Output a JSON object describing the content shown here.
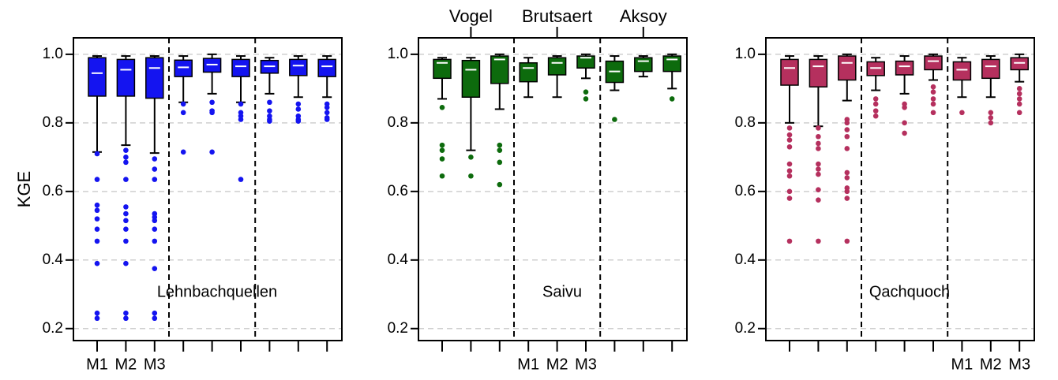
{
  "chart_data": [
    {
      "type": "box",
      "color": "#1414f0",
      "ylabel": "KGE",
      "annotation": "Lehnbachquellen",
      "categories": [
        "M1",
        "M2",
        "M3",
        null,
        null,
        null,
        null,
        null,
        null
      ],
      "ylim": [
        0.165,
        1.048
      ],
      "yticks": [
        0.2,
        0.4,
        0.6,
        0.8,
        {
          "value": 1,
          "label": "1.0"
        }
      ],
      "grid": true,
      "boxes": [
        {
          "whislo": 0.715,
          "q1": 0.878,
          "med": 0.945,
          "q3": 0.99,
          "whishi": 0.995,
          "fliers": [
            0.71,
            0.635,
            0.56,
            0.545,
            0.52,
            0.49,
            0.455,
            0.39,
            0.245,
            0.23
          ]
        },
        {
          "whislo": 0.735,
          "q1": 0.878,
          "med": 0.955,
          "q3": 0.985,
          "whishi": 0.995,
          "fliers": [
            0.72,
            0.7,
            0.685,
            0.635,
            0.555,
            0.535,
            0.515,
            0.49,
            0.455,
            0.39,
            0.245,
            0.23
          ]
        },
        {
          "whislo": 0.712,
          "q1": 0.872,
          "med": 0.96,
          "q3": 0.99,
          "whishi": 0.995,
          "fliers": [
            0.695,
            0.665,
            0.635,
            0.535,
            0.525,
            0.515,
            0.49,
            0.455,
            0.375,
            0.245,
            0.23
          ]
        },
        {
          "whislo": 0.86,
          "q1": 0.935,
          "med": 0.962,
          "q3": 0.983,
          "whishi": 0.995,
          "fliers": [
            0.855,
            0.83,
            0.715
          ]
        },
        {
          "whislo": 0.885,
          "q1": 0.948,
          "med": 0.97,
          "q3": 0.988,
          "whishi": 1.0,
          "fliers": [
            0.86,
            0.835,
            0.83,
            0.715
          ]
        },
        {
          "whislo": 0.86,
          "q1": 0.935,
          "med": 0.965,
          "q3": 0.985,
          "whishi": 0.995,
          "fliers": [
            0.855,
            0.83,
            0.82,
            0.81,
            0.635
          ]
        },
        {
          "whislo": 0.885,
          "q1": 0.945,
          "med": 0.965,
          "q3": 0.982,
          "whishi": 0.99,
          "fliers": [
            0.86,
            0.835,
            0.82,
            0.81,
            0.805
          ]
        },
        {
          "whislo": 0.875,
          "q1": 0.938,
          "med": 0.967,
          "q3": 0.985,
          "whishi": 0.995,
          "fliers": [
            0.855,
            0.84,
            0.82,
            0.81,
            0.805
          ]
        },
        {
          "whislo": 0.875,
          "q1": 0.935,
          "med": 0.965,
          "q3": 0.985,
          "whishi": 0.995,
          "fliers": [
            0.855,
            0.845,
            0.83,
            0.815,
            0.81
          ]
        }
      ]
    },
    {
      "type": "box",
      "color": "#0d6b0d",
      "annotation": "Saivu",
      "group_labels": [
        "Vogel",
        "Brutsaert",
        "Aksoy"
      ],
      "categories": [
        null,
        null,
        null,
        "M1",
        "M2",
        "M3",
        null,
        null,
        null
      ],
      "ylim": [
        0.165,
        1.048
      ],
      "yticks": [
        0.2,
        0.4,
        0.6,
        0.8,
        {
          "value": 1,
          "label": "1.0"
        }
      ],
      "grid": true,
      "boxes": [
        {
          "whislo": 0.87,
          "q1": 0.93,
          "med": 0.975,
          "q3": 0.985,
          "whishi": 0.99,
          "fliers": [
            0.845,
            0.735,
            0.72,
            0.695,
            0.645
          ]
        },
        {
          "whislo": 0.72,
          "q1": 0.875,
          "med": 0.955,
          "q3": 0.982,
          "whishi": 0.99,
          "fliers": [
            0.7,
            0.645
          ]
        },
        {
          "whislo": 0.84,
          "q1": 0.915,
          "med": 0.985,
          "q3": 0.995,
          "whishi": 1.0,
          "fliers": [
            0.735,
            0.72,
            0.685,
            0.62
          ]
        },
        {
          "whislo": 0.875,
          "q1": 0.92,
          "med": 0.96,
          "q3": 0.975,
          "whishi": 0.99,
          "fliers": []
        },
        {
          "whislo": 0.875,
          "q1": 0.94,
          "med": 0.975,
          "q3": 0.99,
          "whishi": 0.995,
          "fliers": []
        },
        {
          "whislo": 0.93,
          "q1": 0.96,
          "med": 0.99,
          "q3": 0.995,
          "whishi": 1.0,
          "fliers": [
            0.89,
            0.87
          ]
        },
        {
          "whislo": 0.895,
          "q1": 0.918,
          "med": 0.95,
          "q3": 0.98,
          "whishi": 0.995,
          "fliers": [
            0.81
          ]
        },
        {
          "whislo": 0.935,
          "q1": 0.95,
          "med": 0.98,
          "q3": 0.99,
          "whishi": 0.995,
          "fliers": []
        },
        {
          "whislo": 0.9,
          "q1": 0.95,
          "med": 0.985,
          "q3": 0.995,
          "whishi": 1.0,
          "fliers": [
            0.87
          ]
        }
      ]
    },
    {
      "type": "box",
      "color": "#b5305e",
      "annotation": "Qachquoch",
      "categories": [
        null,
        null,
        null,
        null,
        null,
        null,
        "M1",
        "M2",
        "M3"
      ],
      "ylim": [
        0.165,
        1.048
      ],
      "yticks": [
        0.2,
        0.4,
        0.6,
        0.8,
        {
          "value": 1,
          "label": "1.0"
        }
      ],
      "grid": true,
      "boxes": [
        {
          "whislo": 0.8,
          "q1": 0.91,
          "med": 0.96,
          "q3": 0.985,
          "whishi": 0.995,
          "fliers": [
            0.785,
            0.765,
            0.75,
            0.73,
            0.68,
            0.66,
            0.645,
            0.6,
            0.58,
            0.455
          ]
        },
        {
          "whislo": 0.79,
          "q1": 0.905,
          "med": 0.965,
          "q3": 0.985,
          "whishi": 0.995,
          "fliers": [
            0.785,
            0.76,
            0.74,
            0.725,
            0.68,
            0.665,
            0.65,
            0.605,
            0.575,
            0.455
          ]
        },
        {
          "whislo": 0.865,
          "q1": 0.925,
          "med": 0.975,
          "q3": 0.995,
          "whishi": 1.0,
          "fliers": [
            0.81,
            0.8,
            0.78,
            0.76,
            0.725,
            0.655,
            0.64,
            0.61,
            0.6,
            0.58,
            0.455
          ]
        },
        {
          "whislo": 0.895,
          "q1": 0.938,
          "med": 0.96,
          "q3": 0.978,
          "whishi": 0.99,
          "fliers": [
            0.87,
            0.855,
            0.835,
            0.82
          ]
        },
        {
          "whislo": 0.885,
          "q1": 0.94,
          "med": 0.965,
          "q3": 0.98,
          "whishi": 0.995,
          "fliers": [
            0.855,
            0.845,
            0.8,
            0.77
          ]
        },
        {
          "whislo": 0.925,
          "q1": 0.955,
          "med": 0.98,
          "q3": 0.995,
          "whishi": 1.0,
          "fliers": [
            0.905,
            0.89,
            0.87,
            0.855,
            0.83
          ]
        },
        {
          "whislo": 0.875,
          "q1": 0.925,
          "med": 0.955,
          "q3": 0.978,
          "whishi": 0.99,
          "fliers": [
            0.83
          ]
        },
        {
          "whislo": 0.875,
          "q1": 0.93,
          "med": 0.965,
          "q3": 0.985,
          "whishi": 0.995,
          "fliers": [
            0.83,
            0.815,
            0.8
          ]
        },
        {
          "whislo": 0.92,
          "q1": 0.955,
          "med": 0.975,
          "q3": 0.99,
          "whishi": 1.0,
          "fliers": [
            0.9,
            0.885,
            0.87,
            0.855,
            0.83
          ]
        }
      ]
    }
  ]
}
